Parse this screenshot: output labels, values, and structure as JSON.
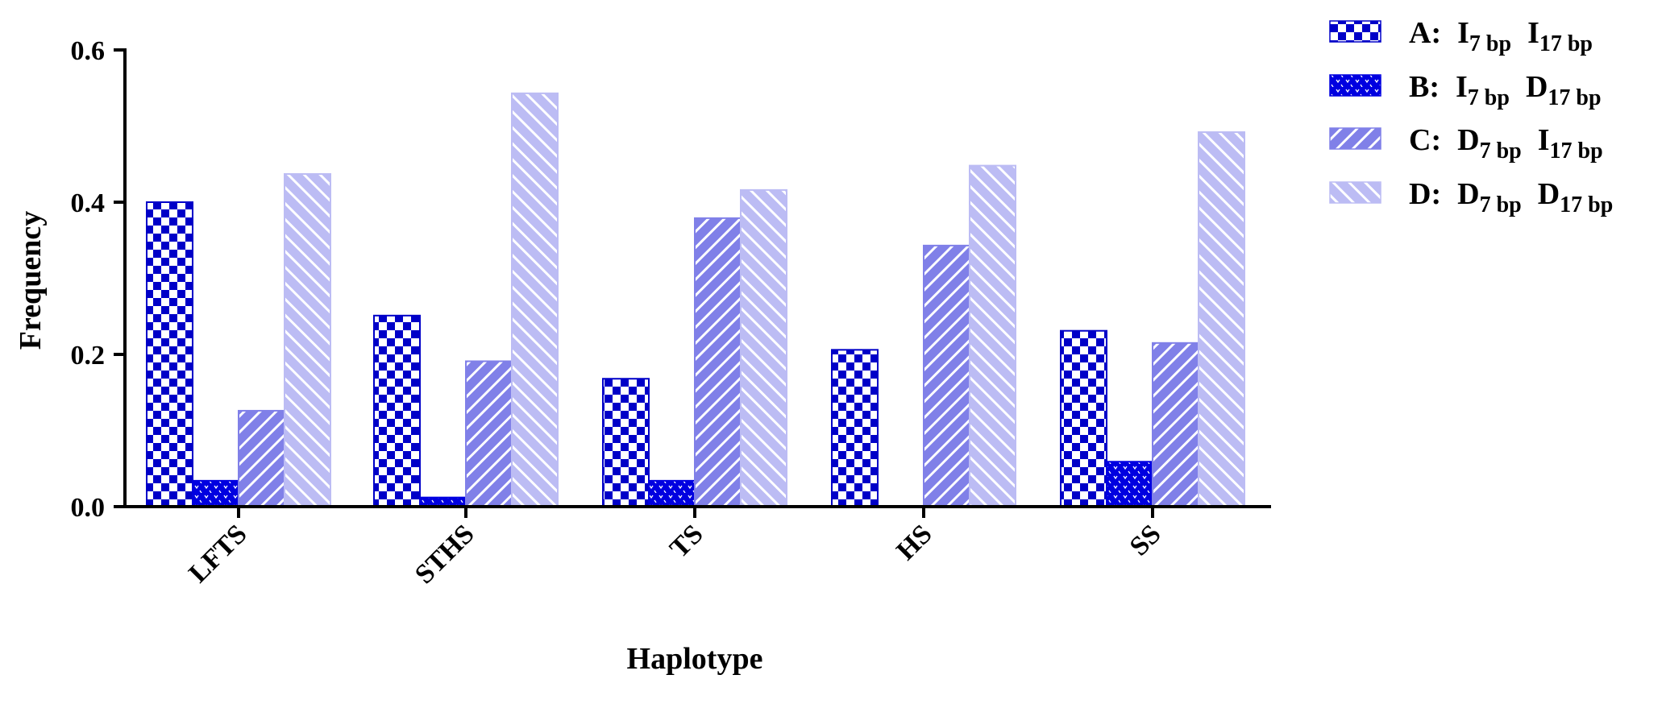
{
  "chart_data": {
    "type": "bar",
    "title": "",
    "xlabel": "Haplotype",
    "ylabel": "Frequency",
    "ylim": [
      0,
      0.6
    ],
    "yticks": [
      "0.0",
      "0.2",
      "0.4",
      "0.6"
    ],
    "ytick_values": [
      0,
      0.2,
      0.4,
      0.6
    ],
    "categories": [
      "LFTS",
      "STHS",
      "TS",
      "HS",
      "SS"
    ],
    "grid": false,
    "legend_position": "top-right",
    "series": [
      {
        "name": "A: I7 bp I17 bp",
        "label": {
          "letter": "A:",
          "first": "I",
          "first_sub": "7 bp",
          "second": "I",
          "second_sub": "17 bp"
        },
        "pattern": "checkerboard",
        "color": "#0000c8",
        "values": [
          0.4,
          0.251,
          0.168,
          0.206,
          0.231
        ]
      },
      {
        "name": "B: I7 bp D17 bp",
        "label": {
          "letter": "B:",
          "first": "I",
          "first_sub": "7 bp",
          "second": "D",
          "second_sub": "17 bp"
        },
        "pattern": "dotted",
        "color": "#0000e0",
        "values": [
          0.034,
          0.012,
          0.034,
          0.0,
          0.059
        ]
      },
      {
        "name": "C: D7 bp I17 bp",
        "label": {
          "letter": "C:",
          "first": "D",
          "first_sub": "7 bp",
          "second": "I",
          "second_sub": "17 bp"
        },
        "pattern": "forward-hatch",
        "color": "#8080e8",
        "values": [
          0.126,
          0.191,
          0.379,
          0.343,
          0.215
        ]
      },
      {
        "name": "D: D7 bp D17 bp",
        "label": {
          "letter": "D:",
          "first": "D",
          "first_sub": "7 bp",
          "second": "D",
          "second_sub": "17 bp"
        },
        "pattern": "back-hatch",
        "color": "#bcbcf4",
        "values": [
          0.437,
          0.543,
          0.416,
          0.448,
          0.492
        ]
      }
    ]
  }
}
